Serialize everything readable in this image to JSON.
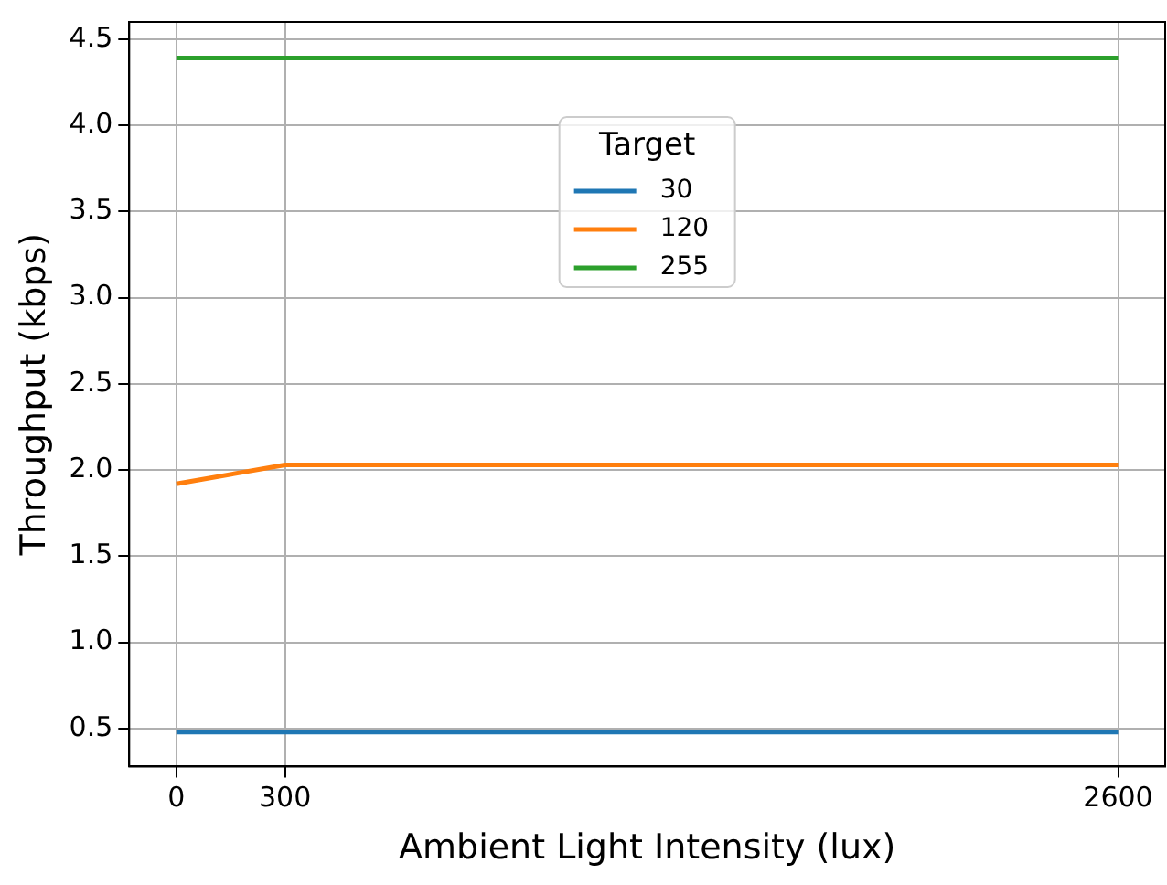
{
  "chart_data": {
    "type": "line",
    "xlabel": "Ambient Light Intensity (lux)",
    "ylabel": "Throughput (kbps)",
    "legend_title": "Target",
    "x": [
      0,
      300,
      2600
    ],
    "series": [
      {
        "name": "30",
        "color": "#1f77b4",
        "values": [
          0.48,
          0.48,
          0.48
        ]
      },
      {
        "name": "120",
        "color": "#ff7f0e",
        "values": [
          1.92,
          2.03,
          2.03
        ]
      },
      {
        "name": "255",
        "color": "#2ca02c",
        "values": [
          4.39,
          4.39,
          4.39
        ]
      }
    ],
    "xlim": [
      -130,
      2730
    ],
    "xticks": [
      0,
      300,
      2600
    ],
    "ylim": [
      0.28,
      4.6
    ],
    "yticks": [
      0.5,
      {
        "value": 1,
        "label": "1.0"
      },
      1.5,
      {
        "value": 2,
        "label": "2.0"
      },
      2.5,
      {
        "value": 3,
        "label": "3.0"
      },
      3.5,
      {
        "value": 4,
        "label": "4.0"
      },
      4.5
    ],
    "grid": true,
    "legend": "top",
    "marker": "none",
    "line_style": "solid"
  }
}
